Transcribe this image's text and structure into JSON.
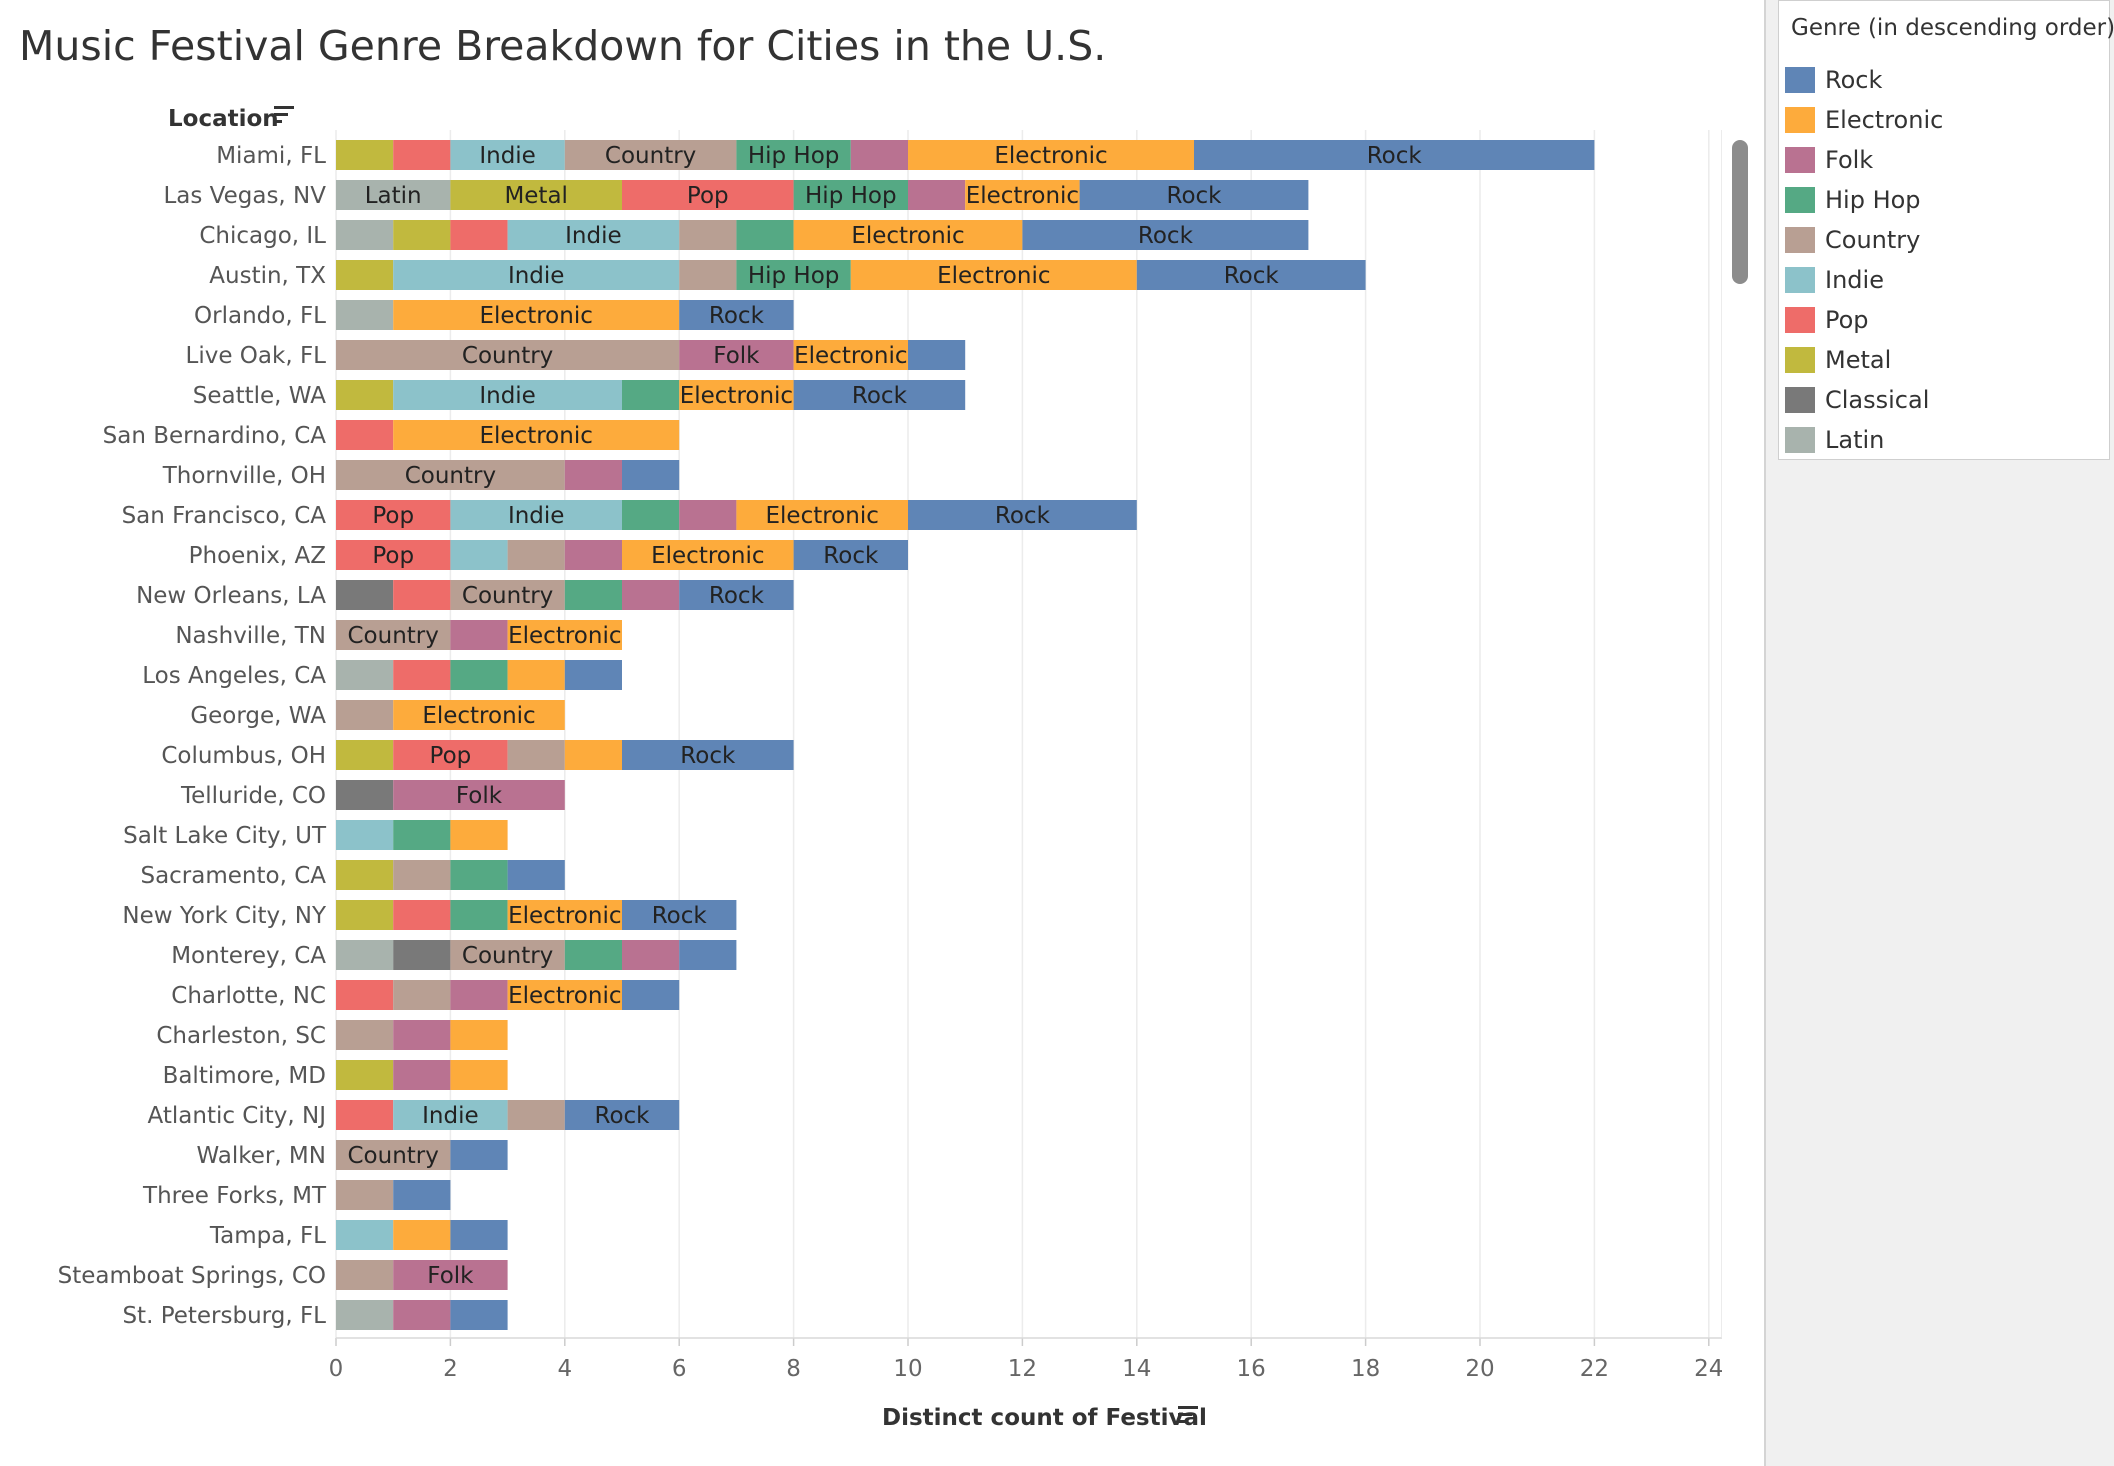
{
  "title": "Music Festival Genre Breakdown for Cities in the U.S.",
  "legend": {
    "title": "Genre (in descending order)",
    "items": [
      {
        "label": "Rock",
        "color": "#5f85b6"
      },
      {
        "label": "Electronic",
        "color": "#fdab3c"
      },
      {
        "label": "Folk",
        "color": "#b97291"
      },
      {
        "label": "Hip Hop",
        "color": "#55a984"
      },
      {
        "label": "Country",
        "color": "#b89f93"
      },
      {
        "label": "Indie",
        "color": "#8cc2ca"
      },
      {
        "label": "Pop",
        "color": "#ee6c69"
      },
      {
        "label": "Metal",
        "color": "#c1b93e"
      },
      {
        "label": "Classical",
        "color": "#797979"
      },
      {
        "label": "Latin",
        "color": "#a8b3ad"
      }
    ]
  },
  "chart_data": {
    "type": "bar",
    "orientation": "horizontal",
    "stacked": true,
    "ylabel": "Location",
    "xlabel": "Distinct count of Festival",
    "xlim": [
      0,
      24
    ],
    "xticks": [
      0,
      2,
      4,
      6,
      8,
      10,
      12,
      14,
      16,
      18,
      20,
      22,
      24
    ],
    "grid": true,
    "legend_position": "right",
    "stack_order": [
      "Latin",
      "Classical",
      "Metal",
      "Pop",
      "Indie",
      "Country",
      "Hip Hop",
      "Folk",
      "Electronic",
      "Rock"
    ],
    "label_min_width": 2,
    "categories": [
      "Miami, FL",
      "Las Vegas, NV",
      "Chicago, IL",
      "Austin, TX",
      "Orlando, FL",
      "Live Oak, FL",
      "Seattle, WA",
      "San Bernardino, CA",
      "Thornville, OH",
      "San Francisco, CA",
      "Phoenix, AZ",
      "New Orleans, LA",
      "Nashville, TN",
      "Los Angeles, CA",
      "George, WA",
      "Columbus, OH",
      "Telluride, CO",
      "Salt Lake City, UT",
      "Sacramento, CA",
      "New York City, NY",
      "Monterey, CA",
      "Charlotte, NC",
      "Charleston, SC",
      "Baltimore, MD",
      "Atlantic City, NJ",
      "Walker, MN",
      "Three Forks, MT",
      "Tampa, FL",
      "Steamboat Springs, CO",
      "St. Petersburg, FL"
    ],
    "series": [
      {
        "name": "Latin",
        "values": [
          0,
          2,
          1,
          0,
          1,
          0,
          0,
          0,
          0,
          0,
          0,
          0,
          0,
          1,
          0,
          0,
          0,
          0,
          0,
          0,
          1,
          0,
          0,
          0,
          0,
          0,
          0,
          0,
          0,
          1
        ]
      },
      {
        "name": "Classical",
        "values": [
          0,
          0,
          0,
          0,
          0,
          0,
          0,
          0,
          0,
          0,
          0,
          1,
          0,
          0,
          0,
          0,
          1,
          0,
          0,
          0,
          1,
          0,
          0,
          0,
          0,
          0,
          0,
          0,
          0,
          0
        ]
      },
      {
        "name": "Metal",
        "values": [
          1,
          3,
          1,
          1,
          0,
          0,
          1,
          0,
          0,
          0,
          0,
          0,
          0,
          0,
          0,
          1,
          0,
          0,
          1,
          1,
          0,
          0,
          0,
          1,
          0,
          0,
          0,
          0,
          0,
          0
        ]
      },
      {
        "name": "Pop",
        "values": [
          1,
          3,
          1,
          0,
          0,
          0,
          0,
          1,
          0,
          2,
          2,
          1,
          0,
          1,
          0,
          2,
          0,
          0,
          0,
          1,
          0,
          1,
          0,
          0,
          1,
          0,
          0,
          0,
          0,
          0
        ]
      },
      {
        "name": "Indie",
        "values": [
          2,
          0,
          3,
          5,
          0,
          0,
          4,
          0,
          0,
          3,
          1,
          0,
          0,
          0,
          0,
          0,
          0,
          1,
          0,
          0,
          0,
          0,
          0,
          0,
          2,
          0,
          0,
          1,
          0,
          0
        ]
      },
      {
        "name": "Country",
        "values": [
          3,
          0,
          1,
          1,
          0,
          6,
          0,
          0,
          4,
          0,
          1,
          2,
          2,
          0,
          1,
          1,
          0,
          0,
          1,
          0,
          2,
          1,
          1,
          0,
          1,
          2,
          1,
          0,
          1,
          0
        ]
      },
      {
        "name": "Hip Hop",
        "values": [
          2,
          2,
          1,
          2,
          0,
          0,
          1,
          0,
          0,
          1,
          0,
          1,
          0,
          1,
          0,
          0,
          0,
          1,
          1,
          1,
          1,
          0,
          0,
          0,
          0,
          0,
          0,
          0,
          0,
          0
        ]
      },
      {
        "name": "Folk",
        "values": [
          1,
          1,
          0,
          0,
          0,
          2,
          0,
          0,
          1,
          1,
          1,
          1,
          1,
          0,
          0,
          0,
          3,
          0,
          0,
          0,
          1,
          1,
          1,
          1,
          0,
          0,
          0,
          0,
          2,
          1
        ]
      },
      {
        "name": "Electronic",
        "values": [
          5,
          2,
          4,
          5,
          5,
          2,
          2,
          5,
          0,
          3,
          3,
          0,
          2,
          1,
          3,
          1,
          0,
          1,
          0,
          2,
          0,
          2,
          1,
          1,
          0,
          0,
          0,
          1,
          0,
          0
        ]
      },
      {
        "name": "Rock",
        "values": [
          7,
          4,
          5,
          4,
          2,
          1,
          3,
          0,
          1,
          4,
          2,
          2,
          0,
          1,
          0,
          3,
          0,
          0,
          1,
          2,
          1,
          1,
          0,
          0,
          2,
          1,
          1,
          1,
          0,
          1
        ]
      }
    ]
  },
  "axis": {
    "location_header": "Location",
    "x_title": "Distinct count of Festival"
  }
}
